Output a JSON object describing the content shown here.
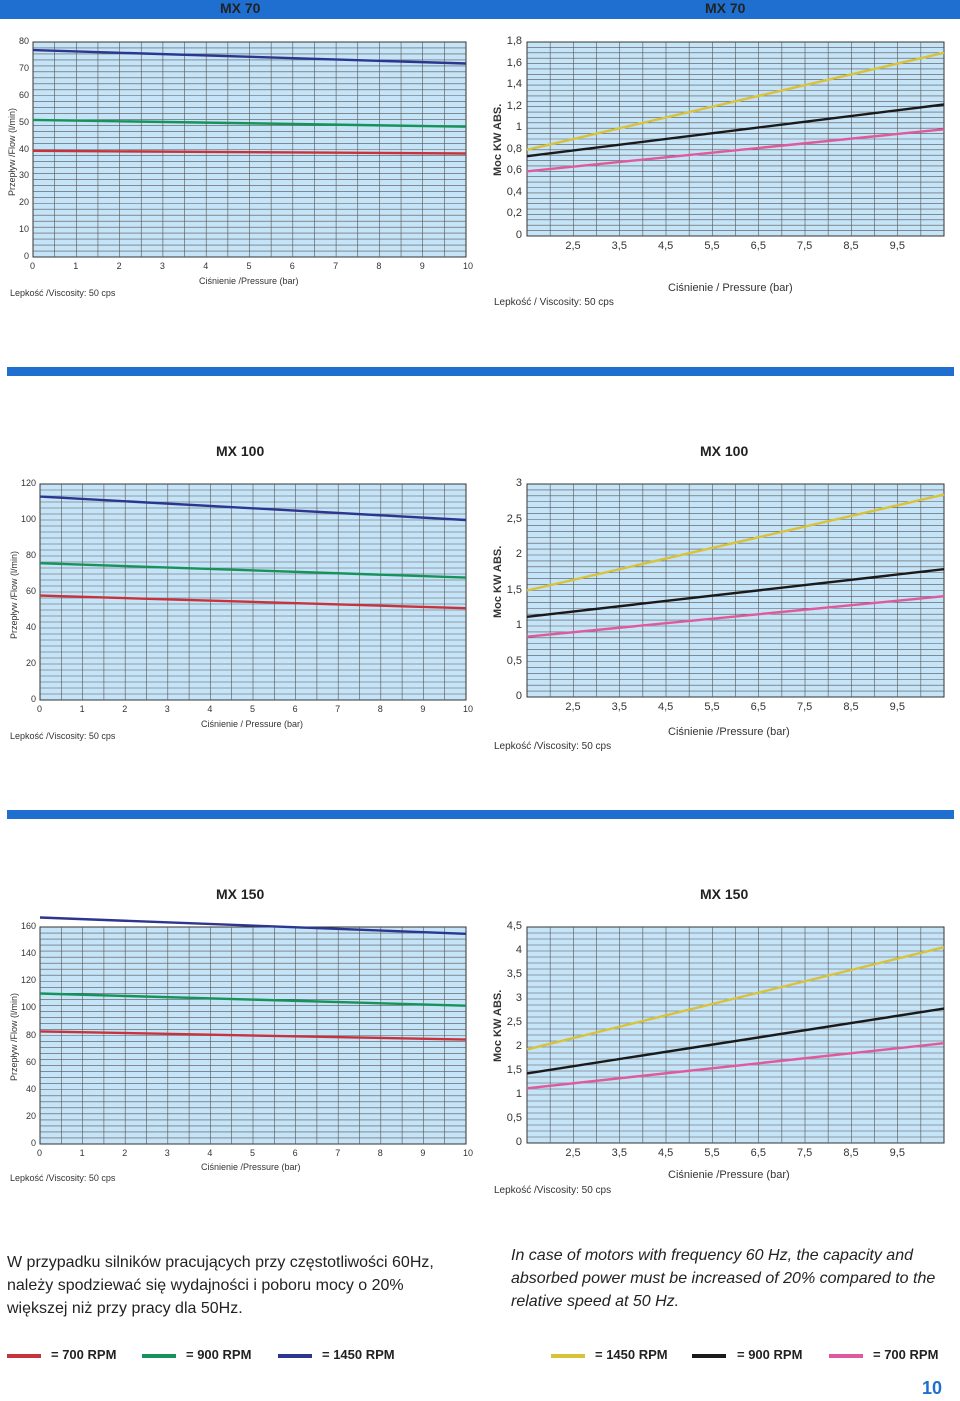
{
  "header": {
    "left": "MX 70",
    "right": "MX 70"
  },
  "chart_data": [
    {
      "id": "mx70-flow",
      "type": "line",
      "title": "",
      "ylabel": "Przepływ /Flow (l/min)",
      "xlabel": "Ciśnienie /Pressure (bar)",
      "viscosity": "Lepkość /Viscosity: 50 cps",
      "xlim": [
        0,
        10
      ],
      "ylim": [
        0,
        80
      ],
      "xticks": [
        0,
        1,
        2,
        3,
        4,
        5,
        6,
        7,
        8,
        9,
        10
      ],
      "xticklabels": [
        "0",
        "1",
        "2",
        "3",
        "4",
        "5",
        "6",
        "7",
        "8",
        "9",
        "10"
      ],
      "yticks": [
        0,
        10,
        20,
        30,
        40,
        50,
        60,
        70,
        80
      ],
      "yticklabels": [
        "0",
        "10",
        "20",
        "30",
        "40",
        "50",
        "60",
        "70",
        "80"
      ],
      "series": [
        {
          "name": "= 1450 RPM",
          "color": "#2c3590",
          "x": [
            0,
            10
          ],
          "y": [
            77,
            72
          ]
        },
        {
          "name": "= 900 RPM",
          "color": "#16935a",
          "x": [
            0,
            10
          ],
          "y": [
            51,
            48.5
          ]
        },
        {
          "name": "= 700 RPM",
          "color": "#c8323c",
          "x": [
            0,
            10
          ],
          "y": [
            39.5,
            38.5
          ]
        }
      ]
    },
    {
      "id": "mx70-power",
      "type": "line",
      "title": "",
      "ylabel": "Moc  KW ABS.",
      "xlabel": "Ciśnienie / Pressure (bar)",
      "viscosity": "Lepkość / Viscosity: 50 cps",
      "xlim": [
        1.5,
        10.5
      ],
      "ylim": [
        0,
        1.8
      ],
      "xticks": [
        2.5,
        3.5,
        4.5,
        5.5,
        6.5,
        7.5,
        8.5,
        9.5
      ],
      "xticklabels": [
        "2,5",
        "3,5",
        "4,5",
        "5,5",
        "6,5",
        "7,5",
        "8,5",
        "9,5"
      ],
      "yticks": [
        0,
        0.2,
        0.4,
        0.6,
        0.8,
        1,
        1.2,
        1.4,
        1.6,
        1.8
      ],
      "yticklabels": [
        "0",
        "0,2",
        "0,4",
        "0,6",
        "0,8",
        "1",
        "1,2",
        "1,4",
        "1,6",
        "1,8"
      ],
      "series": [
        {
          "name": "= 1450 RPM",
          "color": "#d8c23a",
          "x": [
            1.5,
            10.5
          ],
          "y": [
            0.8,
            1.7
          ]
        },
        {
          "name": "= 900 RPM",
          "color": "#1a1a1a",
          "x": [
            1.5,
            10.5
          ],
          "y": [
            0.74,
            1.22
          ]
        },
        {
          "name": "= 700 RPM",
          "color": "#de5a9c",
          "x": [
            1.5,
            10.5
          ],
          "y": [
            0.6,
            0.99
          ]
        }
      ]
    },
    {
      "id": "mx100-flow",
      "type": "line",
      "title": "",
      "ylabel": "Przepływ /Flow (l/min)",
      "xlabel": "Ciśnienie / Pressure (bar)",
      "viscosity": "Lepkość /Viscosity: 50 cps",
      "xlim": [
        0,
        10
      ],
      "ylim": [
        0,
        120
      ],
      "xticks": [
        0,
        1,
        2,
        3,
        4,
        5,
        6,
        7,
        8,
        9,
        10
      ],
      "xticklabels": [
        "0",
        "1",
        "2",
        "3",
        "4",
        "5",
        "6",
        "7",
        "8",
        "9",
        "10"
      ],
      "yticks": [
        0,
        20,
        40,
        60,
        80,
        100,
        120
      ],
      "yticklabels": [
        "0",
        "20",
        "40",
        "60",
        "80",
        "100",
        "120"
      ],
      "series": [
        {
          "name": "= 1450 RPM",
          "color": "#2c3590",
          "x": [
            0,
            10
          ],
          "y": [
            113,
            100
          ]
        },
        {
          "name": "= 900 RPM",
          "color": "#16935a",
          "x": [
            0,
            10
          ],
          "y": [
            76,
            68
          ]
        },
        {
          "name": "= 700 RPM",
          "color": "#c8323c",
          "x": [
            0,
            10
          ],
          "y": [
            58,
            51
          ]
        }
      ]
    },
    {
      "id": "mx100-power",
      "type": "line",
      "title": "",
      "ylabel": "Moc  KW ABS.",
      "xlabel": "Ciśnienie /Pressure (bar)",
      "viscosity": "Lepkość /Viscosity: 50 cps",
      "xlim": [
        1.5,
        10.5
      ],
      "ylim": [
        0,
        3
      ],
      "xticks": [
        2.5,
        3.5,
        4.5,
        5.5,
        6.5,
        7.5,
        8.5,
        9.5
      ],
      "xticklabels": [
        "2,5",
        "3,5",
        "4,5",
        "5,5",
        "6,5",
        "7,5",
        "8,5",
        "9,5"
      ],
      "yticks": [
        0,
        0.5,
        1,
        1.5,
        2,
        2.5,
        3
      ],
      "yticklabels": [
        "0",
        "0,5",
        "1",
        "1,5",
        "2",
        "2,5",
        "3"
      ],
      "series": [
        {
          "name": "= 1450 RPM",
          "color": "#d8c23a",
          "x": [
            1.5,
            10.5
          ],
          "y": [
            1.5,
            2.85
          ]
        },
        {
          "name": "= 900 RPM",
          "color": "#1a1a1a",
          "x": [
            1.5,
            10.5
          ],
          "y": [
            1.13,
            1.8
          ]
        },
        {
          "name": "= 700 RPM",
          "color": "#de5a9c",
          "x": [
            1.5,
            10.5
          ],
          "y": [
            0.85,
            1.42
          ]
        }
      ]
    },
    {
      "id": "mx150-flow",
      "type": "line",
      "title": "",
      "ylabel": "Przepływ /Flow (l/min)",
      "xlabel": "Ciśnienie /Pressure (bar)",
      "viscosity": "Lepkość /Viscosity: 50 cps",
      "xlim": [
        0,
        10
      ],
      "ylim": [
        0,
        160
      ],
      "xticks": [
        0,
        1,
        2,
        3,
        4,
        5,
        6,
        7,
        8,
        9,
        10
      ],
      "xticklabels": [
        "0",
        "1",
        "2",
        "3",
        "4",
        "5",
        "6",
        "7",
        "8",
        "9",
        "10"
      ],
      "yticks": [
        0,
        20,
        40,
        60,
        80,
        100,
        120,
        140,
        160
      ],
      "yticklabels": [
        "0",
        "20",
        "40",
        "60",
        "80",
        "100",
        "120",
        "140",
        "160"
      ],
      "series": [
        {
          "name": "= 1450 RPM",
          "color": "#2c3590",
          "x": [
            0,
            10
          ],
          "y": [
            167,
            155
          ]
        },
        {
          "name": "= 900 RPM",
          "color": "#16935a",
          "x": [
            0,
            10
          ],
          "y": [
            111,
            102
          ]
        },
        {
          "name": "= 700 RPM",
          "color": "#c8323c",
          "x": [
            0,
            10
          ],
          "y": [
            83,
            77
          ]
        }
      ]
    },
    {
      "id": "mx150-power",
      "type": "line",
      "title": "",
      "ylabel": "Moc  KW ABS.",
      "xlabel": "Ciśnienie /Pressure (bar)",
      "viscosity": "Lepkość /Viscosity: 50 cps",
      "xlim": [
        1.5,
        10.5
      ],
      "ylim": [
        0,
        4.5
      ],
      "xticks": [
        2.5,
        3.5,
        4.5,
        5.5,
        6.5,
        7.5,
        8.5,
        9.5
      ],
      "xticklabels": [
        "2,5",
        "3,5",
        "4,5",
        "5,5",
        "6,5",
        "7,5",
        "8,5",
        "9,5"
      ],
      "yticks": [
        0,
        0.5,
        1,
        1.5,
        2,
        2.5,
        3,
        3.5,
        4,
        4.5
      ],
      "yticklabels": [
        "0",
        "0,5",
        "1",
        "1,5",
        "2",
        "2,5",
        "3",
        "3,5",
        "4",
        "4,5"
      ],
      "series": [
        {
          "name": "= 1450 RPM",
          "color": "#d8c23a",
          "x": [
            1.5,
            10.5
          ],
          "y": [
            1.95,
            4.08
          ]
        },
        {
          "name": "= 900 RPM",
          "color": "#1a1a1a",
          "x": [
            1.5,
            10.5
          ],
          "y": [
            1.45,
            2.8
          ]
        },
        {
          "name": "= 700 RPM",
          "color": "#de5a9c",
          "x": [
            1.5,
            10.5
          ],
          "y": [
            1.14,
            2.08
          ]
        }
      ]
    }
  ],
  "titles": {
    "mx100_left": "MX 100",
    "mx100_right": "MX 100",
    "mx150_left": "MX 150",
    "mx150_right": "MX 150"
  },
  "notes": {
    "pl": "W przypadku silników pracujących przy częstotliwości 60Hz, należy spodziewać się wydajności i poboru mocy o 20% większej niż przy pracy dla 50Hz.",
    "en": "In case of motors with frequency 60 Hz, the capacity and absorbed power must be increased of  20% compared to the relative speed at 50 Hz."
  },
  "legend_left": [
    {
      "label": "= 700 RPM",
      "color": "#c8323c"
    },
    {
      "label": "= 900 RPM",
      "color": "#16935a"
    },
    {
      "label": "= 1450 RPM",
      "color": "#2c3590"
    }
  ],
  "legend_right": [
    {
      "label": "= 1450 RPM",
      "color": "#d8c23a"
    },
    {
      "label": "= 900 RPM",
      "color": "#1a1a1a"
    },
    {
      "label": "= 700 RPM",
      "color": "#de5a9c"
    }
  ],
  "page_number": "10"
}
